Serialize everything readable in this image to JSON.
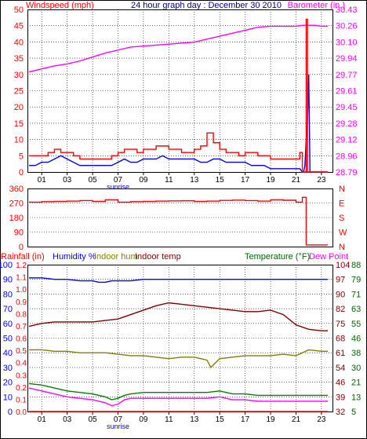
{
  "colors": {
    "frame": "#000000",
    "red": "#ff0000",
    "blue": "#0000ff",
    "magenta": "#ff00ff",
    "green": "#008000",
    "olive": "#808000",
    "maroon": "#800000",
    "darkgreen": "#006600",
    "grid": "#000000"
  },
  "panel1": {
    "title": "24 hour graph day : December 30 2010",
    "left_label": "Windspeed (mph)",
    "right_label": "Barometer (in.)"
  },
  "panel3": {
    "labels": {
      "rainfall": "Rainfall (in)",
      "humidity": "Humidity %",
      "indoor_hum": "Indoor hum",
      "indoor_temp": "Indoor temp",
      "temperature": "Temperature (°F)",
      "dew_point": "Dew Point"
    }
  },
  "chart_data": [
    {
      "type": "line",
      "name": "wind-barometer",
      "x_ticks": [
        "01",
        "03",
        "05",
        "07",
        "09",
        "11",
        "13",
        "15",
        "17",
        "19",
        "21",
        "23"
      ],
      "x_annotation": "sunrise",
      "y_left_ticks": [
        "0",
        "5",
        "10",
        "15",
        "20",
        "25",
        "30",
        "35",
        "40",
        "45",
        "50"
      ],
      "y_left_range": [
        0,
        50
      ],
      "y_right_ticks": [
        "28.79",
        "28.96",
        "29.12",
        "29.28",
        "29.45",
        "29.61",
        "29.77",
        "29.94",
        "30.10",
        "30.26",
        "30.43"
      ],
      "y_right_range": [
        28.79,
        30.43
      ],
      "series": [
        {
          "name": "Barometer",
          "axis": "right",
          "color": "#ff00ff",
          "x": [
            0,
            1,
            2,
            3,
            4,
            5,
            6,
            7,
            8,
            9,
            10,
            11,
            12,
            13,
            14,
            15,
            16,
            17,
            18,
            19,
            20,
            21,
            21.5,
            22,
            22.5,
            23,
            23.5
          ],
          "y": [
            29.8,
            29.83,
            29.86,
            29.88,
            29.91,
            29.95,
            29.99,
            30.02,
            30.05,
            30.06,
            30.07,
            30.08,
            30.09,
            30.1,
            30.13,
            30.16,
            30.19,
            30.22,
            30.25,
            30.26,
            30.26,
            30.26,
            30.27,
            30.27,
            30.27,
            30.26,
            30.26
          ]
        },
        {
          "name": "Wind average",
          "axis": "left",
          "color": "#0000ff",
          "x": [
            0,
            0.5,
            1,
            1.5,
            2,
            2.5,
            3,
            3.5,
            4,
            4.5,
            5,
            5.5,
            6,
            6.5,
            7,
            7.5,
            8,
            8.5,
            9,
            9.5,
            10,
            10.5,
            11,
            11.5,
            12,
            12.5,
            13,
            13.5,
            14,
            14.5,
            15,
            15.5,
            16,
            16.5,
            17,
            17.5,
            18,
            18.5,
            19,
            19.5,
            20,
            20.5,
            21,
            21.3,
            21.5,
            21.6,
            21.7,
            21.8,
            21.9,
            22,
            22.1,
            22.3,
            23,
            23.5
          ],
          "y": [
            2,
            2,
            3,
            3,
            4,
            5,
            4,
            3,
            2,
            2,
            2,
            2,
            2,
            2,
            3,
            4,
            3,
            3,
            4,
            4,
            4,
            5,
            4,
            4,
            4,
            4,
            4,
            3,
            3,
            4,
            4,
            3,
            3,
            3,
            3,
            2,
            2,
            2,
            1,
            1,
            1,
            1,
            1,
            1,
            0,
            0,
            2,
            10,
            15,
            30,
            0,
            0,
            0,
            0
          ]
        },
        {
          "name": "Wind gust",
          "axis": "left",
          "color": "#ff0000",
          "x": [
            0,
            0.5,
            1,
            1.5,
            2,
            2.5,
            3,
            3.5,
            4,
            4.5,
            5,
            5.5,
            6,
            6.5,
            7,
            7.5,
            8,
            8.5,
            9,
            9.5,
            10,
            10.5,
            11,
            11.5,
            12,
            12.5,
            13,
            13.5,
            14,
            14.5,
            15,
            15.5,
            16,
            16.5,
            17,
            17.5,
            18,
            18.5,
            19,
            19.5,
            20,
            20.5,
            21,
            21.3,
            21.5,
            21.7,
            21.8,
            21.9,
            22,
            22.2,
            23,
            23.5
          ],
          "y": [
            5,
            5,
            5,
            6,
            7,
            6,
            6,
            5,
            4,
            4,
            4,
            4,
            4,
            5,
            6,
            7,
            7,
            6,
            7,
            7,
            8,
            8,
            7,
            7,
            6,
            6,
            7,
            8,
            12,
            9,
            7,
            6,
            6,
            5,
            6,
            6,
            5,
            5,
            4,
            4,
            4,
            4,
            4,
            6,
            0,
            0,
            47,
            0,
            0,
            0,
            0,
            0
          ]
        }
      ]
    },
    {
      "type": "line",
      "name": "wind-direction",
      "y_left_ticks": [
        "0",
        "90",
        "180",
        "270",
        "360"
      ],
      "y_left_range": [
        0,
        360
      ],
      "y_right_ticks": [
        "N",
        "W",
        "S",
        "E",
        "N"
      ],
      "series": [
        {
          "name": "Wind direction",
          "axis": "left",
          "color": "#ff0000",
          "x": [
            0,
            1,
            2,
            3,
            4,
            5,
            6,
            7,
            8,
            9,
            10,
            11,
            12,
            13,
            14,
            15,
            16,
            17,
            18,
            19,
            20,
            21,
            21.5,
            21.7,
            21.8,
            22,
            23,
            23.5
          ],
          "y": [
            275,
            278,
            280,
            282,
            285,
            280,
            290,
            275,
            278,
            280,
            282,
            283,
            284,
            280,
            282,
            286,
            288,
            285,
            282,
            290,
            287,
            275,
            305,
            305,
            10,
            10,
            10,
            10
          ]
        }
      ]
    },
    {
      "type": "line",
      "name": "humidity-temperature",
      "x_ticks": [
        "01",
        "03",
        "05",
        "07",
        "09",
        "11",
        "13",
        "15",
        "17",
        "19",
        "21",
        "23"
      ],
      "x_annotation": "sunrise",
      "y_left_ticks": [
        "0",
        "10",
        "20",
        "30",
        "40",
        "50",
        "60",
        "70",
        "80",
        "90",
        "100"
      ],
      "y_left_range": [
        0,
        100
      ],
      "y_rain_ticks": [
        "0.0",
        "0.1",
        "0.2",
        "0.3",
        "0.4",
        "0.5",
        "0.6",
        "0.7",
        "0.8",
        "0.9",
        "1.0",
        "1.1",
        "1.2"
      ],
      "y_rain_range": [
        0.0,
        1.2
      ],
      "y_temp_ticks": [
        "32",
        "39",
        "46",
        "54",
        "61",
        "68",
        "75",
        "82",
        "90",
        "97",
        "104"
      ],
      "y_temp_range": [
        32,
        104
      ],
      "y_dew_ticks": [
        "5",
        "13",
        "21",
        "30",
        "38",
        "46",
        "55",
        "63",
        "71",
        "79",
        "88"
      ],
      "y_dew_range": [
        5,
        88
      ],
      "series": [
        {
          "name": "Humidity",
          "axis": "left",
          "color": "#0000ff",
          "x": [
            0,
            1,
            2,
            3,
            4,
            5,
            5.5,
            6,
            6.5,
            7,
            8,
            9,
            10,
            11,
            12,
            13,
            14,
            15,
            16,
            17,
            18,
            19,
            20,
            21,
            22,
            23,
            23.5
          ],
          "y": [
            91,
            91,
            90,
            90,
            89,
            89,
            88,
            88,
            89,
            89,
            89,
            90,
            90,
            90,
            90,
            90,
            90,
            90,
            90,
            90,
            90,
            90,
            90,
            90,
            90,
            90,
            90
          ]
        },
        {
          "name": "Indoor hum",
          "axis": "left",
          "color": "#808000",
          "x": [
            0,
            1,
            2,
            3,
            4,
            5,
            6,
            7,
            8,
            9,
            10,
            11,
            12,
            13,
            14,
            14.3,
            15,
            16,
            17,
            18,
            19,
            20,
            21,
            22,
            23,
            23.5
          ],
          "y": [
            42,
            42,
            41,
            41,
            40,
            40,
            40,
            39,
            38,
            38,
            37,
            36,
            37,
            37,
            35,
            30,
            36,
            37,
            38,
            38,
            38,
            39,
            38,
            42,
            41,
            41
          ]
        },
        {
          "name": "Indoor temp",
          "axis": "left",
          "color": "#800000",
          "x": [
            0,
            1,
            2,
            3,
            4,
            5,
            6,
            7,
            8,
            9,
            10,
            11,
            12,
            13,
            14,
            15,
            16,
            17,
            18,
            19,
            20,
            21,
            22,
            23,
            23.5
          ],
          "y": [
            58,
            60,
            61,
            61,
            61,
            61,
            62,
            63,
            66,
            69,
            72,
            74,
            73,
            72,
            71,
            70,
            69,
            68,
            68,
            69,
            66,
            59,
            56,
            55,
            55
          ]
        },
        {
          "name": "Temperature",
          "axis": "left",
          "color": "#008000",
          "x": [
            0,
            1,
            2,
            3,
            4,
            5,
            6,
            6.5,
            7,
            7.5,
            8,
            9,
            10,
            11,
            12,
            13,
            14,
            15,
            16,
            17,
            18,
            19,
            20,
            21,
            22,
            23,
            23.5
          ],
          "y": [
            19,
            18,
            16,
            14,
            13,
            12,
            10,
            8,
            9,
            11,
            12,
            13,
            13,
            13,
            13,
            13,
            13,
            14,
            12,
            12,
            11,
            11,
            11,
            11,
            11,
            11,
            11
          ]
        },
        {
          "name": "Dew Point",
          "axis": "left",
          "color": "#ff00ff",
          "x": [
            0,
            1,
            2,
            3,
            4,
            5,
            6,
            6.5,
            7,
            7.5,
            8,
            9,
            10,
            11,
            12,
            13,
            14,
            15,
            16,
            17,
            18,
            19,
            20,
            21,
            22,
            23,
            23.5
          ],
          "y": [
            16,
            14,
            12,
            10,
            9,
            8,
            6,
            4,
            5,
            8,
            9,
            9,
            9,
            9,
            9,
            9,
            9,
            10,
            8,
            8,
            7,
            7,
            7,
            7,
            7,
            7,
            7
          ]
        },
        {
          "name": "Rainfall",
          "axis": "rain",
          "color": "#ff0000",
          "x": [
            0,
            23.5
          ],
          "y": [
            0.0,
            0.0
          ]
        }
      ]
    }
  ]
}
